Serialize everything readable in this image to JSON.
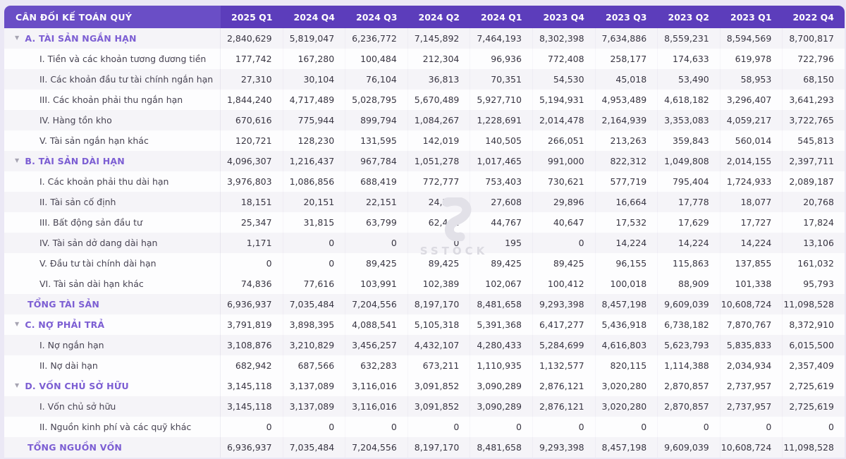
{
  "table": {
    "title": "CÂN ĐỐI KẾ TOÁN QUÝ",
    "columns": [
      "2025 Q1",
      "2024 Q4",
      "2024 Q3",
      "2024 Q2",
      "2024 Q1",
      "2023 Q4",
      "2023 Q3",
      "2023 Q2",
      "2023 Q1",
      "2022 Q4"
    ],
    "rows": [
      {
        "label": "A. TÀI SẢN NGẮN HẠN",
        "type": "section",
        "values": [
          "2,840,629",
          "5,819,047",
          "6,236,772",
          "7,145,892",
          "7,464,193",
          "8,302,398",
          "7,634,886",
          "8,559,231",
          "8,594,569",
          "8,700,817"
        ]
      },
      {
        "label": "I. Tiền và các khoản tương đương tiền",
        "type": "item",
        "values": [
          "177,742",
          "167,280",
          "100,484",
          "212,304",
          "96,936",
          "772,408",
          "258,177",
          "174,633",
          "619,978",
          "722,796"
        ]
      },
      {
        "label": "II. Các khoản đầu tư tài chính ngắn hạn",
        "type": "item",
        "values": [
          "27,310",
          "30,104",
          "76,104",
          "36,813",
          "70,351",
          "54,530",
          "45,018",
          "53,490",
          "58,953",
          "68,150"
        ]
      },
      {
        "label": "III. Các khoản phải thu ngắn hạn",
        "type": "item",
        "values": [
          "1,844,240",
          "4,717,489",
          "5,028,795",
          "5,670,489",
          "5,927,710",
          "5,194,931",
          "4,953,489",
          "4,618,182",
          "3,296,407",
          "3,641,293"
        ]
      },
      {
        "label": "IV. Hàng tồn kho",
        "type": "item",
        "values": [
          "670,616",
          "775,944",
          "899,794",
          "1,084,267",
          "1,228,691",
          "2,014,478",
          "2,164,939",
          "3,353,083",
          "4,059,217",
          "3,722,765"
        ]
      },
      {
        "label": "V. Tài sản ngắn hạn khác",
        "type": "item",
        "values": [
          "120,721",
          "128,230",
          "131,595",
          "142,019",
          "140,505",
          "266,051",
          "213,263",
          "359,843",
          "560,014",
          "545,813"
        ]
      },
      {
        "label": "B. TÀI SẢN DÀI HẠN",
        "type": "section",
        "values": [
          "4,096,307",
          "1,216,437",
          "967,784",
          "1,051,278",
          "1,017,465",
          "991,000",
          "822,312",
          "1,049,808",
          "2,014,155",
          "2,397,711"
        ]
      },
      {
        "label": "I. Các khoản phải thu dài hạn",
        "type": "item",
        "values": [
          "3,976,803",
          "1,086,856",
          "688,419",
          "772,777",
          "753,403",
          "730,621",
          "577,719",
          "795,404",
          "1,724,933",
          "2,089,187"
        ]
      },
      {
        "label": "II. Tài sản cố định",
        "type": "item",
        "values": [
          "18,151",
          "20,151",
          "22,151",
          "24,226",
          "27,608",
          "29,896",
          "16,664",
          "17,778",
          "18,077",
          "20,768"
        ]
      },
      {
        "label": "III. Bất động sản đầu tư",
        "type": "item",
        "values": [
          "25,347",
          "31,815",
          "63,799",
          "62,461",
          "44,767",
          "40,647",
          "17,532",
          "17,629",
          "17,727",
          "17,824"
        ]
      },
      {
        "label": "IV. Tài sản dở dang dài hạn",
        "type": "item",
        "values": [
          "1,171",
          "0",
          "0",
          "0",
          "195",
          "0",
          "14,224",
          "14,224",
          "14,224",
          "13,106"
        ]
      },
      {
        "label": "V. Đầu tư tài chính dài hạn",
        "type": "item",
        "values": [
          "0",
          "0",
          "89,425",
          "89,425",
          "89,425",
          "89,425",
          "96,155",
          "115,863",
          "137,855",
          "161,032"
        ]
      },
      {
        "label": "VI. Tài sản dài hạn khác",
        "type": "item",
        "values": [
          "74,836",
          "77,616",
          "103,991",
          "102,389",
          "102,067",
          "100,412",
          "100,018",
          "88,909",
          "101,338",
          "95,793"
        ]
      },
      {
        "label": "TỔNG TÀI SẢN",
        "type": "total",
        "values": [
          "6,936,937",
          "7,035,484",
          "7,204,556",
          "8,197,170",
          "8,481,658",
          "9,293,398",
          "8,457,198",
          "9,609,039",
          "10,608,724",
          "11,098,528"
        ]
      },
      {
        "label": "C. NỢ PHẢI TRẢ",
        "type": "section",
        "values": [
          "3,791,819",
          "3,898,395",
          "4,088,541",
          "5,105,318",
          "5,391,368",
          "6,417,277",
          "5,436,918",
          "6,738,182",
          "7,870,767",
          "8,372,910"
        ]
      },
      {
        "label": "I. Nợ ngắn hạn",
        "type": "item",
        "values": [
          "3,108,876",
          "3,210,829",
          "3,456,257",
          "4,432,107",
          "4,280,433",
          "5,284,699",
          "4,616,803",
          "5,623,793",
          "5,835,833",
          "6,015,500"
        ]
      },
      {
        "label": "II. Nợ dài hạn",
        "type": "item",
        "values": [
          "682,942",
          "687,566",
          "632,283",
          "673,211",
          "1,110,935",
          "1,132,577",
          "820,115",
          "1,114,388",
          "2,034,934",
          "2,357,409"
        ]
      },
      {
        "label": "D. VỐN CHỦ SỞ HỮU",
        "type": "section",
        "values": [
          "3,145,118",
          "3,137,089",
          "3,116,016",
          "3,091,852",
          "3,090,289",
          "2,876,121",
          "3,020,280",
          "2,870,857",
          "2,737,957",
          "2,725,619"
        ]
      },
      {
        "label": "I. Vốn chủ sở hữu",
        "type": "item",
        "values": [
          "3,145,118",
          "3,137,089",
          "3,116,016",
          "3,091,852",
          "3,090,289",
          "2,876,121",
          "3,020,280",
          "2,870,857",
          "2,737,957",
          "2,725,619"
        ]
      },
      {
        "label": "II. Nguồn kinh phí và các quỹ khác",
        "type": "item",
        "values": [
          "0",
          "0",
          "0",
          "0",
          "0",
          "0",
          "0",
          "0",
          "0",
          "0"
        ]
      },
      {
        "label": "TỔNG NGUỒN VỐN",
        "type": "total",
        "values": [
          "6,936,937",
          "7,035,484",
          "7,204,556",
          "8,197,170",
          "8,481,658",
          "9,293,398",
          "8,457,198",
          "9,609,039",
          "10,608,724",
          "11,098,528"
        ]
      }
    ]
  },
  "watermark": {
    "text": "SSTOCK",
    "logo_icon": "sstock-swoosh-logo-icon"
  },
  "colors": {
    "header_label_bg": "#6a4ec6",
    "header_columns_bg": "#5c3dbb",
    "section_text": "#7c5ed3",
    "row_stripe_bg": "#f5f4f8",
    "page_bg": "#ebe8f5",
    "number_text": "#383542",
    "watermark_gray": "#dbdae1"
  }
}
